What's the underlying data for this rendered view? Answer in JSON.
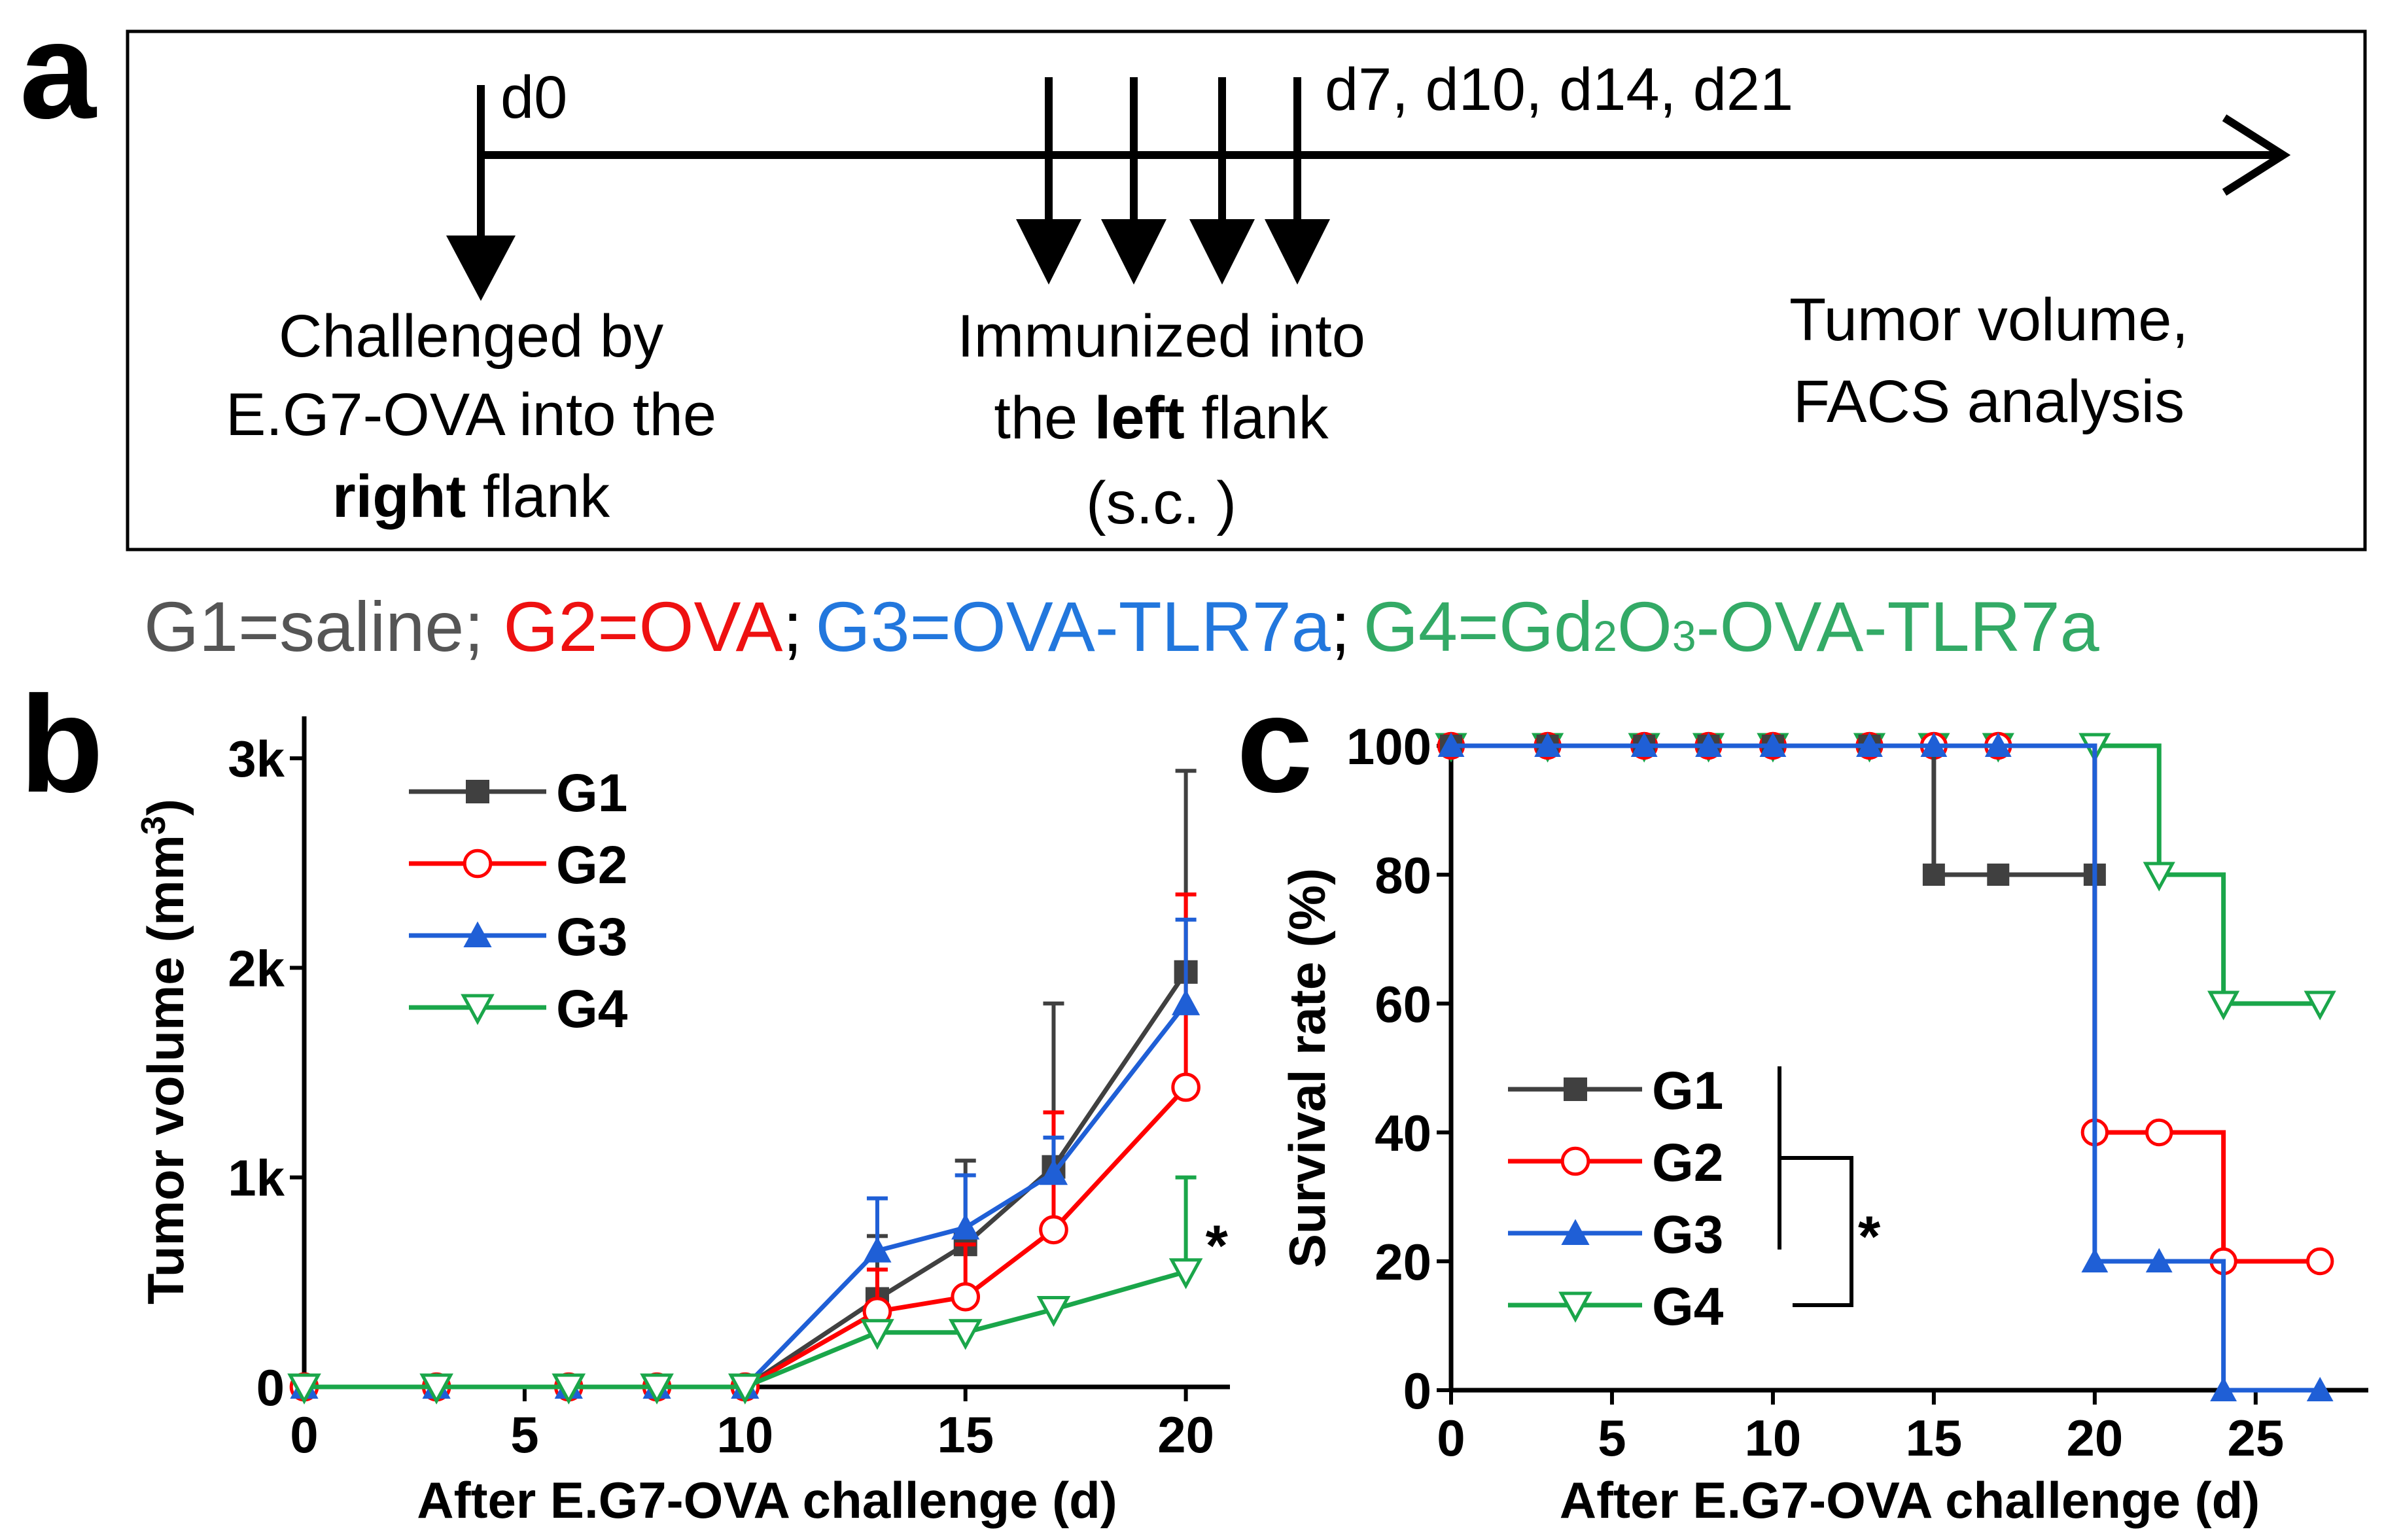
{
  "panel_labels": {
    "a": "a",
    "b": "b",
    "c": "c"
  },
  "panel_a": {
    "day0": "d0",
    "later_days": "d7, d10, d14, d21",
    "challenge_line1": "Challenged by",
    "challenge_line2": "E.G7-OVA into the",
    "challenge_bold": "right",
    "challenge_rest": " flank",
    "immunized_line1": "Immunized into",
    "immunized_pre": "the ",
    "immunized_bold": "left",
    "immunized_post": " flank",
    "immunized_line3": "(s.c. )",
    "readout_line1": "Tumor volume,",
    "readout_line2": "FACS analysis"
  },
  "group_legend": {
    "g1": "G1=saline;",
    "g2": "G2=OVA",
    "sep1": ";",
    "g3": "G3=OVA-TLR7a",
    "sep2": ";",
    "g4_a": "G4=Gd",
    "g4_sub1": "2",
    "g4_b": "O",
    "g4_sub2": "3",
    "g4_c": "-OVA-TLR7a"
  },
  "colors": {
    "G1": "#404040",
    "G2": "#ff0000",
    "G3": "#1f5fd6",
    "G4": "#1aa64a",
    "text_G1": "#555555",
    "text_G2": "#ee1111",
    "text_G3": "#2277dd",
    "text_G4": "#33aa66"
  },
  "chart_data": [
    {
      "type": "line",
      "panel": "b",
      "xlabel": "After E.G7-OVA challenge (d)",
      "ylabel_main": "Tumor volume (mm",
      "ylabel_sup": "3",
      "ylabel_end": ")",
      "xlim": [
        0,
        21
      ],
      "ylim": [
        0,
        3200
      ],
      "xticks": [
        0,
        5,
        10,
        15,
        20
      ],
      "yticks": [
        0,
        1000,
        2000,
        3000
      ],
      "ytick_labels": [
        "0",
        "1k",
        "2k",
        "3k"
      ],
      "annotation": "*",
      "x": [
        0,
        3,
        6,
        8,
        10,
        13,
        15,
        17,
        20
      ],
      "series": [
        {
          "name": "G1",
          "values": [
            0,
            0,
            0,
            0,
            0,
            420,
            680,
            1050,
            1980
          ],
          "errors": [
            0,
            0,
            0,
            0,
            0,
            300,
            400,
            780,
            960
          ]
        },
        {
          "name": "G2",
          "values": [
            0,
            0,
            0,
            0,
            0,
            360,
            430,
            750,
            1430
          ],
          "errors": [
            0,
            0,
            0,
            0,
            0,
            200,
            250,
            560,
            920
          ]
        },
        {
          "name": "G3",
          "values": [
            0,
            0,
            0,
            0,
            0,
            650,
            760,
            1020,
            1830
          ],
          "errors": [
            0,
            0,
            0,
            0,
            0,
            250,
            250,
            170,
            400
          ]
        },
        {
          "name": "G4",
          "values": [
            0,
            0,
            0,
            0,
            0,
            260,
            260,
            370,
            550
          ],
          "errors": [
            0,
            0,
            0,
            0,
            0,
            0,
            0,
            0,
            450
          ]
        }
      ]
    },
    {
      "type": "line",
      "panel": "c",
      "step": true,
      "xlabel": "After E.G7-OVA challenge (d)",
      "ylabel": "Survival rate (%)",
      "xlim": [
        0,
        28.5
      ],
      "ylim": [
        0,
        100
      ],
      "xticks": [
        0,
        5,
        10,
        15,
        20,
        25
      ],
      "yticks": [
        0,
        20,
        40,
        60,
        80,
        100
      ],
      "annotation": "*",
      "series": [
        {
          "name": "G1",
          "x": [
            0,
            3,
            6,
            8,
            10,
            13,
            15,
            17,
            20
          ],
          "values": [
            100,
            100,
            100,
            100,
            100,
            100,
            80,
            80,
            80
          ]
        },
        {
          "name": "G2",
          "x": [
            0,
            3,
            6,
            8,
            10,
            13,
            15,
            17,
            20,
            22,
            24,
            27
          ],
          "values": [
            100,
            100,
            100,
            100,
            100,
            100,
            100,
            100,
            40,
            40,
            20,
            20
          ]
        },
        {
          "name": "G3",
          "x": [
            0,
            3,
            6,
            8,
            10,
            13,
            15,
            17,
            20,
            22,
            24,
            27
          ],
          "values": [
            100,
            100,
            100,
            100,
            100,
            100,
            100,
            100,
            20,
            20,
            0,
            0
          ]
        },
        {
          "name": "G4",
          "x": [
            0,
            3,
            6,
            8,
            10,
            13,
            15,
            17,
            20,
            22,
            24,
            27
          ],
          "values": [
            100,
            100,
            100,
            100,
            100,
            100,
            100,
            100,
            100,
            80,
            60,
            60
          ]
        }
      ]
    }
  ]
}
